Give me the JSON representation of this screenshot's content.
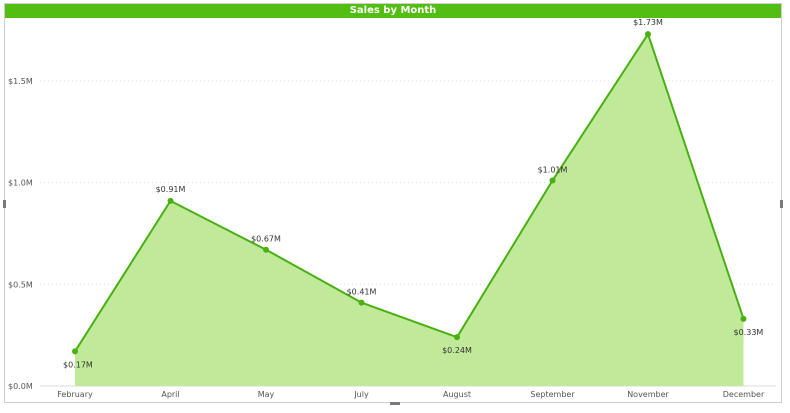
{
  "colors": {
    "title_bg": "#53be12",
    "line": "#49b012",
    "area": "#c0e99a",
    "grid": "#dcdcdc"
  },
  "chart_data": {
    "type": "area",
    "title": "Sales by Month",
    "xlabel": "",
    "ylabel": "",
    "categories": [
      "February",
      "April",
      "May",
      "July",
      "August",
      "September",
      "November",
      "December"
    ],
    "series": [
      {
        "values": [
          0.17,
          0.91,
          0.67,
          0.41,
          0.24,
          1.01,
          1.73,
          0.33
        ],
        "labels": [
          "$0.17M",
          "$0.91M",
          "$0.67M",
          "$0.41M",
          "$0.24M",
          "$1.01M",
          "$1.73M",
          "$0.33M"
        ]
      }
    ],
    "ylim": [
      0,
      1.75
    ],
    "yticks": [
      0,
      0.5,
      1.0,
      1.5
    ],
    "ytick_labels": [
      "$0.0M",
      "$0.5M",
      "$1.0M",
      "$1.5M"
    ],
    "grid": true,
    "legend": "none"
  }
}
